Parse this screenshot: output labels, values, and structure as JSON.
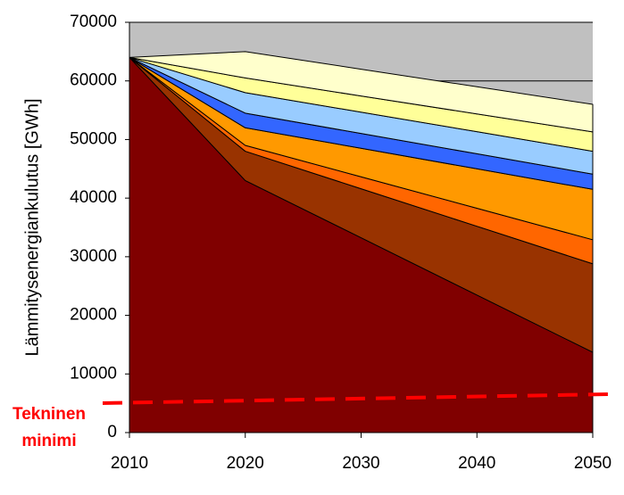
{
  "chart_data": {
    "type": "stacked_area",
    "ylabel": "Lämmitysenergiankulutus [GWh]",
    "x": [
      2010,
      2020,
      2030,
      2040,
      2050
    ],
    "xlim": [
      2010,
      2050
    ],
    "xticks": [
      2010,
      2020,
      2030,
      2040,
      2050
    ],
    "ylim": [
      0,
      70000
    ],
    "yticks": [
      0,
      10000,
      20000,
      30000,
      40000,
      50000,
      60000,
      70000
    ],
    "grid": true,
    "background": "#c0c0c0",
    "series": [
      {
        "color": "#800000",
        "values": [
          64000,
          43000,
          33233,
          23467,
          13700
        ]
      },
      {
        "color": "#993300",
        "values": [
          0,
          5000,
          8367,
          11733,
          15100
        ]
      },
      {
        "color": "#ff6600",
        "values": [
          0,
          1000,
          2033,
          3067,
          4100
        ]
      },
      {
        "color": "#ff9900",
        "values": [
          0,
          3000,
          4867,
          6733,
          8600
        ]
      },
      {
        "color": "#3366ff",
        "values": [
          0,
          2500,
          2533,
          2567,
          2600
        ]
      },
      {
        "color": "#99ccff",
        "values": [
          0,
          3500,
          3633,
          3767,
          3900
        ]
      },
      {
        "color": "#ffff99",
        "values": [
          0,
          2500,
          2767,
          3033,
          3300
        ]
      },
      {
        "color": "#ffffcc",
        "values": [
          0,
          4500,
          4567,
          4633,
          4700
        ]
      }
    ],
    "threshold": {
      "label": [
        "Tekninen",
        "minimi"
      ],
      "color": "#ff0000",
      "x": [
        2010,
        2050
      ],
      "values": [
        5100,
        6500
      ]
    }
  }
}
